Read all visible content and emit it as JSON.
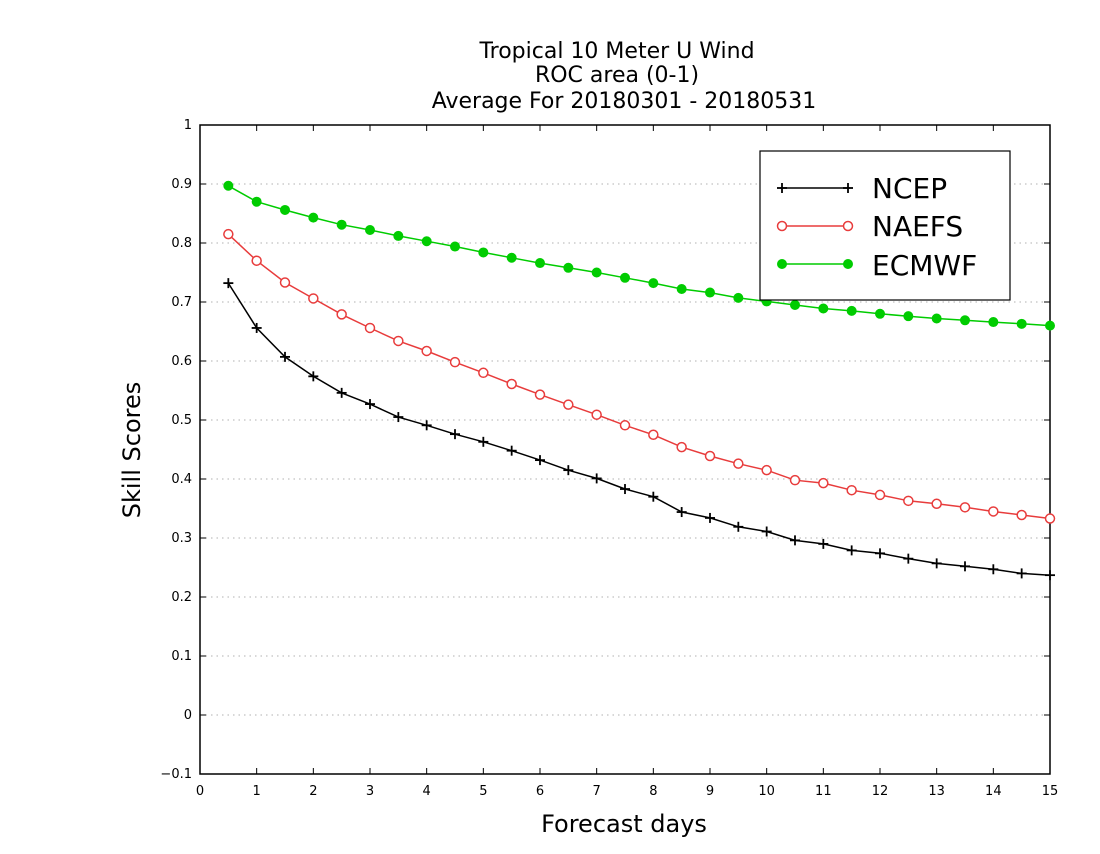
{
  "chart_data": {
    "type": "line",
    "title_lines": [
      "Tropical 10 Meter U Wind",
      "ROC area (0-1)",
      "Average For 20180301 - 20180531"
    ],
    "xlabel": "Forecast days",
    "ylabel": "Skill Scores",
    "xlim": [
      0,
      15
    ],
    "ylim": [
      -0.1,
      1
    ],
    "x_ticks": [
      0,
      1,
      2,
      3,
      4,
      5,
      6,
      7,
      8,
      9,
      10,
      11,
      12,
      13,
      14,
      15
    ],
    "y_ticks": [
      -0.1,
      0,
      0.1,
      0.2,
      0.3,
      0.4,
      0.5,
      0.6,
      0.7,
      0.8,
      0.9,
      1
    ],
    "grid": "horizontal dotted",
    "legend_position": "top-right",
    "x": [
      0.5,
      1,
      1.5,
      2,
      2.5,
      3,
      3.5,
      4,
      4.5,
      5,
      5.5,
      6,
      6.5,
      7,
      7.5,
      8,
      8.5,
      9,
      9.5,
      10,
      10.5,
      11,
      11.5,
      12,
      12.5,
      13,
      13.5,
      14,
      14.5,
      15
    ],
    "series": [
      {
        "name": "NCEP",
        "color": "#000000",
        "marker": "plus",
        "values": [
          0.732,
          0.656,
          0.607,
          0.574,
          0.546,
          0.527,
          0.505,
          0.491,
          0.476,
          0.463,
          0.448,
          0.432,
          0.415,
          0.401,
          0.383,
          0.37,
          0.344,
          0.334,
          0.319,
          0.311,
          0.296,
          0.29,
          0.279,
          0.274,
          0.265,
          0.257,
          0.252,
          0.247,
          0.24,
          0.237
        ]
      },
      {
        "name": "NAEFS",
        "color": "#e83c3c",
        "marker": "open-circle",
        "values": [
          0.815,
          0.77,
          0.733,
          0.706,
          0.679,
          0.656,
          0.634,
          0.617,
          0.598,
          0.58,
          0.561,
          0.543,
          0.526,
          0.509,
          0.491,
          0.475,
          0.454,
          0.439,
          0.426,
          0.415,
          0.398,
          0.393,
          0.381,
          0.373,
          0.363,
          0.358,
          0.352,
          0.345,
          0.339,
          0.333
        ]
      },
      {
        "name": "ECMWF",
        "color": "#00cc00",
        "marker": "filled-circle",
        "values": [
          0.897,
          0.87,
          0.856,
          0.843,
          0.831,
          0.822,
          0.812,
          0.803,
          0.794,
          0.784,
          0.775,
          0.766,
          0.758,
          0.75,
          0.741,
          0.732,
          0.722,
          0.716,
          0.707,
          0.701,
          0.695,
          0.689,
          0.685,
          0.68,
          0.676,
          0.672,
          0.669,
          0.666,
          0.663,
          0.66
        ]
      }
    ]
  }
}
